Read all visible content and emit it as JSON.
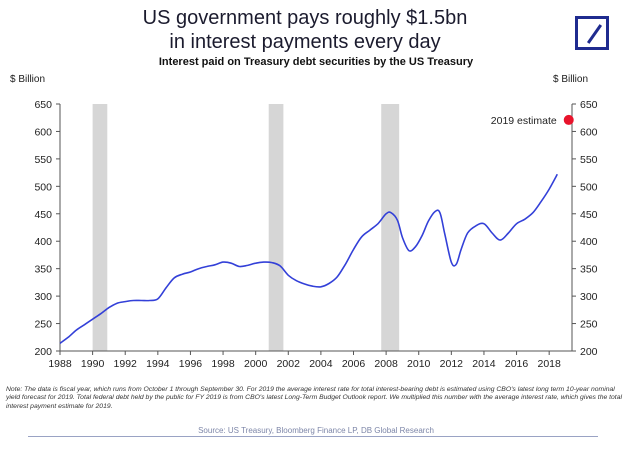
{
  "header": {
    "title_line1": "US government pays roughly $1.5bn",
    "title_line2": "in interest payments every day",
    "subtitle": "Interest paid on Treasury debt securities by the US Treasury",
    "unit_left": "$ Billion",
    "unit_right": "$ Billion"
  },
  "chart_data": {
    "type": "line",
    "title": "Interest paid on Treasury debt securities by the US Treasury",
    "ylabel": "$ Billion",
    "ylim": [
      200,
      650
    ],
    "xlim": [
      1988,
      2019.4
    ],
    "yticks": [
      200,
      250,
      300,
      350,
      400,
      450,
      500,
      550,
      600,
      650
    ],
    "xticks": [
      1988,
      1990,
      1992,
      1994,
      1996,
      1998,
      2000,
      2002,
      2004,
      2006,
      2008,
      2010,
      2012,
      2014,
      2016,
      2018
    ],
    "recessions": [
      [
        1990.0,
        1990.9
      ],
      [
        2000.8,
        2001.7
      ],
      [
        2007.7,
        2008.8
      ]
    ],
    "series": [
      {
        "color": "#3340d8",
        "x": [
          1988.0,
          1988.5,
          1989.0,
          1989.5,
          1990.0,
          1990.5,
          1991.0,
          1991.5,
          1992.0,
          1992.5,
          1993.0,
          1993.5,
          1994.0,
          1994.5,
          1995.0,
          1995.5,
          1996.0,
          1996.5,
          1997.0,
          1997.5,
          1998.0,
          1998.5,
          1999.0,
          1999.5,
          2000.0,
          2000.5,
          2001.0,
          2001.5,
          2002.0,
          2002.5,
          2003.0,
          2003.5,
          2004.0,
          2004.5,
          2005.0,
          2005.5,
          2006.0,
          2006.5,
          2007.0,
          2007.5,
          2008.0,
          2008.3,
          2008.7,
          2009.0,
          2009.4,
          2009.8,
          2010.2,
          2010.6,
          2011.0,
          2011.3,
          2011.6,
          2012.0,
          2012.3,
          2012.6,
          2013.0,
          2013.5,
          2014.0,
          2014.5,
          2015.0,
          2015.5,
          2016.0,
          2016.5,
          2017.0,
          2017.5,
          2018.0,
          2018.5
        ],
        "y": [
          214,
          225,
          238,
          248,
          258,
          268,
          279,
          287,
          290,
          292,
          292,
          292,
          295,
          315,
          333,
          340,
          344,
          350,
          354,
          357,
          362,
          360,
          354,
          356,
          360,
          362,
          361,
          355,
          338,
          328,
          322,
          318,
          317,
          323,
          335,
          358,
          385,
          408,
          420,
          432,
          450,
          452,
          438,
          407,
          383,
          390,
          410,
          437,
          454,
          452,
          413,
          362,
          358,
          385,
          415,
          428,
          432,
          415,
          402,
          415,
          432,
          440,
          452,
          472,
          495,
          522
        ]
      }
    ],
    "annotation": {
      "label": "2019 estimate",
      "x": 2019.2,
      "y": 621,
      "color": "#e8132b"
    }
  },
  "footer": {
    "note": "Note: The data is fiscal year, which runs from October 1 through September 30. For 2019 the average interest rate for total interest-bearing debt is estimated using CBO's latest long term 10-year nominal yield forecast for 2019. Total federal debt held by the public for FY 2019 is from CBO's latest Long-Term Budget Outlook report. We multiplied this number with the average interest rate, which gives the total interest payment estimate for 2019.",
    "source": "Source: US Treasury, Bloomberg Finance LP, DB Global Research"
  },
  "brand": {
    "logo_color": "#1f2b8f"
  }
}
